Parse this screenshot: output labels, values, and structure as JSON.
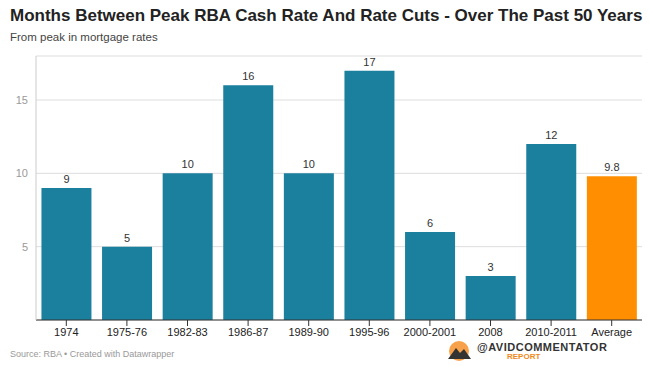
{
  "chart_data": {
    "type": "bar",
    "title": "Months Between Peak RBA Cash Rate And Rate Cuts - Over The Past 50 Years",
    "subtitle": "From peak in mortgage rates",
    "categories": [
      "1974",
      "1975-76",
      "1982-83",
      "1986-87",
      "1989-90",
      "1995-96",
      "2000-2001",
      "2008",
      "2010-2011",
      "Average"
    ],
    "values": [
      9,
      5,
      10,
      16,
      10,
      17,
      6,
      3,
      12,
      9.8
    ],
    "colors": [
      "#1b7f9e",
      "#1b7f9e",
      "#1b7f9e",
      "#1b7f9e",
      "#1b7f9e",
      "#1b7f9e",
      "#1b7f9e",
      "#1b7f9e",
      "#1b7f9e",
      "#ff8f00"
    ],
    "ylim": [
      0,
      18
    ],
    "yticks": [
      5,
      10,
      15
    ],
    "grid": true,
    "data_labels": true,
    "source": "Source: RBA • Created with Datawrapper",
    "brand": "@AVIDCOMMENTATOR",
    "brand_sub": "REPORT"
  }
}
